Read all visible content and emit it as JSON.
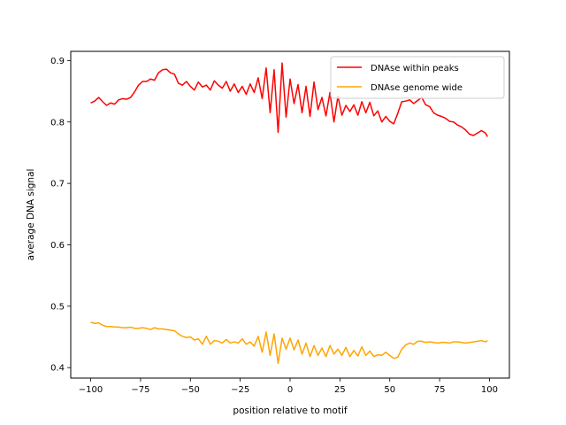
{
  "chart_data": {
    "type": "line",
    "title": "",
    "xlabel": "position relative to motif",
    "ylabel": "average DNA signal",
    "xlim": [
      -110,
      110
    ],
    "ylim": [
      0.383,
      0.915
    ],
    "xticks": [
      -100,
      -75,
      -50,
      -25,
      0,
      25,
      50,
      75,
      100
    ],
    "xtick_labels": [
      "−100",
      "−75",
      "−50",
      "−25",
      "0",
      "25",
      "50",
      "75",
      "100"
    ],
    "yticks": [
      0.4,
      0.5,
      0.6,
      0.7,
      0.8,
      0.9
    ],
    "ytick_labels": [
      "0.4",
      "0.5",
      "0.6",
      "0.7",
      "0.8",
      "0.9"
    ],
    "grid": false,
    "legend_position": "top-right",
    "series": [
      {
        "name": "DNAse within peaks",
        "color": "#ff0000",
        "x": [
          -100,
          -98,
          -96,
          -94,
          -92,
          -90,
          -88,
          -86,
          -84,
          -82,
          -80,
          -78,
          -76,
          -74,
          -72,
          -70,
          -68,
          -66,
          -64,
          -62,
          -60,
          -58,
          -56,
          -54,
          -52,
          -50,
          -48,
          -46,
          -44,
          -42,
          -40,
          -38,
          -36,
          -34,
          -32,
          -30,
          -28,
          -26,
          -24,
          -22,
          -20,
          -18,
          -16,
          -14,
          -12,
          -10,
          -8,
          -6,
          -4,
          -2,
          0,
          2,
          4,
          6,
          8,
          10,
          12,
          14,
          16,
          18,
          20,
          22,
          24,
          26,
          28,
          30,
          32,
          34,
          36,
          38,
          40,
          42,
          44,
          46,
          48,
          50,
          52,
          54,
          56,
          58,
          60,
          62,
          64,
          66,
          68,
          70,
          72,
          74,
          76,
          78,
          80,
          82,
          84,
          86,
          88,
          90,
          92,
          94,
          96,
          98,
          99
        ],
        "y": [
          0.831,
          0.834,
          0.84,
          0.833,
          0.827,
          0.831,
          0.829,
          0.836,
          0.838,
          0.837,
          0.84,
          0.849,
          0.86,
          0.866,
          0.866,
          0.87,
          0.868,
          0.88,
          0.885,
          0.886,
          0.88,
          0.878,
          0.863,
          0.86,
          0.866,
          0.858,
          0.852,
          0.865,
          0.857,
          0.86,
          0.852,
          0.867,
          0.86,
          0.855,
          0.866,
          0.85,
          0.862,
          0.848,
          0.858,
          0.845,
          0.862,
          0.848,
          0.872,
          0.838,
          0.888,
          0.815,
          0.885,
          0.783,
          0.896,
          0.808,
          0.87,
          0.83,
          0.861,
          0.815,
          0.858,
          0.809,
          0.865,
          0.82,
          0.84,
          0.81,
          0.848,
          0.8,
          0.842,
          0.811,
          0.827,
          0.817,
          0.828,
          0.811,
          0.833,
          0.815,
          0.832,
          0.81,
          0.818,
          0.8,
          0.809,
          0.801,
          0.797,
          0.814,
          0.833,
          0.834,
          0.836,
          0.83,
          0.835,
          0.84,
          0.828,
          0.825,
          0.815,
          0.811,
          0.809,
          0.806,
          0.801,
          0.8,
          0.795,
          0.792,
          0.787,
          0.78,
          0.778,
          0.782,
          0.786,
          0.782,
          0.776
        ]
      },
      {
        "name": "DNAse genome wide",
        "color": "#ffa500",
        "x": [
          -100,
          -98,
          -96,
          -94,
          -92,
          -90,
          -88,
          -86,
          -84,
          -82,
          -80,
          -78,
          -76,
          -74,
          -72,
          -70,
          -68,
          -66,
          -64,
          -62,
          -60,
          -58,
          -56,
          -54,
          -52,
          -50,
          -48,
          -46,
          -44,
          -42,
          -40,
          -38,
          -36,
          -34,
          -32,
          -30,
          -28,
          -26,
          -24,
          -22,
          -20,
          -18,
          -16,
          -14,
          -12,
          -10,
          -8,
          -6,
          -4,
          -2,
          0,
          2,
          4,
          6,
          8,
          10,
          12,
          14,
          16,
          18,
          20,
          22,
          24,
          26,
          28,
          30,
          32,
          34,
          36,
          38,
          40,
          42,
          44,
          46,
          48,
          50,
          52,
          54,
          56,
          58,
          60,
          62,
          64,
          66,
          68,
          70,
          72,
          74,
          76,
          78,
          80,
          82,
          84,
          86,
          88,
          90,
          92,
          94,
          96,
          98,
          99
        ],
        "y": [
          0.474,
          0.472,
          0.473,
          0.469,
          0.467,
          0.467,
          0.466,
          0.466,
          0.465,
          0.465,
          0.466,
          0.464,
          0.464,
          0.465,
          0.464,
          0.462,
          0.465,
          0.463,
          0.463,
          0.462,
          0.461,
          0.46,
          0.455,
          0.451,
          0.449,
          0.45,
          0.445,
          0.447,
          0.438,
          0.451,
          0.438,
          0.444,
          0.443,
          0.44,
          0.446,
          0.44,
          0.442,
          0.44,
          0.447,
          0.438,
          0.442,
          0.435,
          0.451,
          0.425,
          0.458,
          0.42,
          0.455,
          0.407,
          0.448,
          0.43,
          0.448,
          0.429,
          0.445,
          0.422,
          0.44,
          0.418,
          0.436,
          0.42,
          0.432,
          0.418,
          0.436,
          0.422,
          0.43,
          0.42,
          0.433,
          0.418,
          0.428,
          0.419,
          0.434,
          0.42,
          0.427,
          0.418,
          0.421,
          0.42,
          0.425,
          0.42,
          0.415,
          0.417,
          0.43,
          0.437,
          0.44,
          0.438,
          0.443,
          0.443,
          0.441,
          0.442,
          0.441,
          0.44,
          0.441,
          0.441,
          0.44,
          0.442,
          0.442,
          0.441,
          0.44,
          0.441,
          0.442,
          0.443,
          0.444,
          0.442,
          0.444
        ]
      }
    ]
  }
}
